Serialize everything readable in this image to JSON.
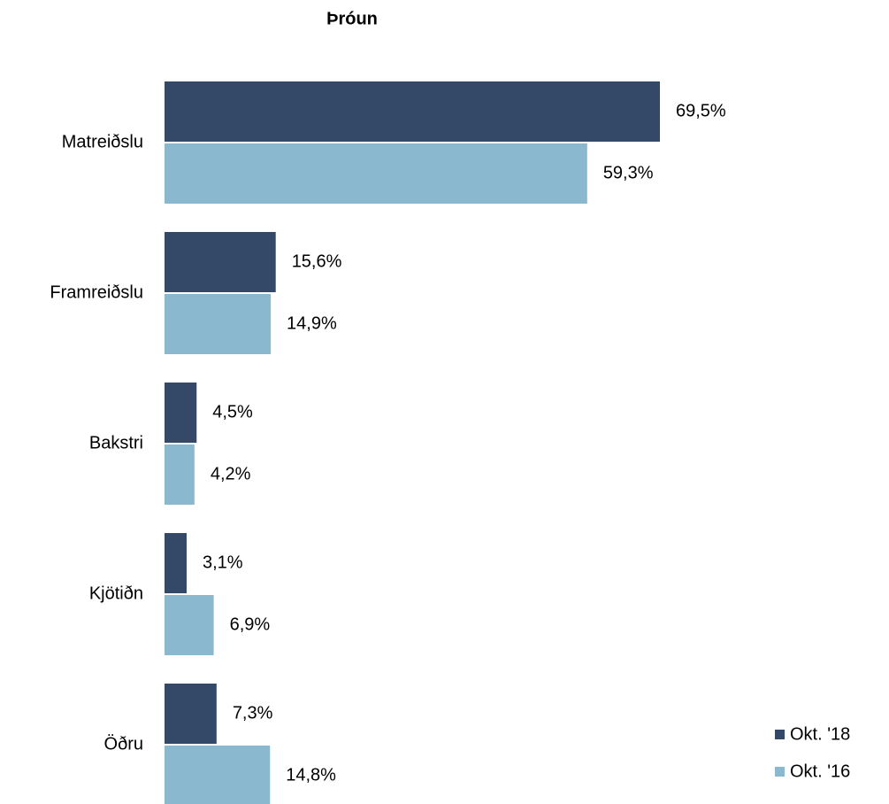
{
  "chart_data": {
    "type": "barh",
    "title": "Þróun",
    "categories": [
      "Matreiðslu",
      "Framreiðslu",
      "Bakstri",
      "Kjötiðn",
      "Öðru"
    ],
    "series": [
      {
        "name": "Okt. '18",
        "color": "#344868",
        "values": [
          69.5,
          15.6,
          4.5,
          3.1,
          7.3
        ],
        "value_labels": [
          "69,5%",
          "15,6%",
          "4,5%",
          "3,1%",
          "7,3%"
        ]
      },
      {
        "name": "Okt. '16",
        "color": "#8ab8ce",
        "values": [
          59.3,
          14.9,
          4.2,
          6.9,
          14.8
        ],
        "value_labels": [
          "59,3%",
          "14,9%",
          "4,2%",
          "6,9%",
          "14,8%"
        ]
      }
    ],
    "legend": "lower right"
  }
}
